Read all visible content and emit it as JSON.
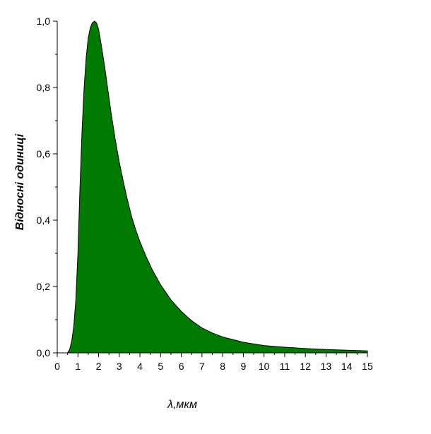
{
  "chart_data": {
    "type": "area",
    "title": "",
    "xlabel": "λ,мкм",
    "ylabel": "Відносні одиниці",
    "xlim": [
      0,
      15
    ],
    "ylim": [
      0,
      1.0
    ],
    "x_ticks": [
      "0",
      "1",
      "2",
      "3",
      "4",
      "5",
      "6",
      "7",
      "8",
      "9",
      "10",
      "11",
      "12",
      "13",
      "14",
      "15"
    ],
    "y_ticks": [
      "0,0",
      "0,2",
      "0,4",
      "0,6",
      "0,8",
      "1,0"
    ],
    "grid": false,
    "fill_color": "#007a00",
    "series": [
      {
        "x": [
          0.5,
          0.6,
          0.7,
          0.8,
          0.9,
          1.0,
          1.1,
          1.2,
          1.3,
          1.4,
          1.5,
          1.6,
          1.7,
          1.8,
          1.9,
          2.0,
          2.1,
          2.2,
          2.3,
          2.4,
          2.5,
          2.6,
          2.8,
          3.0,
          3.2,
          3.4,
          3.6,
          3.8,
          4.0,
          4.3,
          4.6,
          5.0,
          5.5,
          6.0,
          6.5,
          7.0,
          7.5,
          8.0,
          9.0,
          10.0,
          11.0,
          12.0,
          13.0,
          14.0,
          15.0
        ],
        "y": [
          0.0,
          0.01,
          0.035,
          0.08,
          0.16,
          0.3,
          0.5,
          0.67,
          0.8,
          0.89,
          0.95,
          0.98,
          0.995,
          1.0,
          0.995,
          0.975,
          0.94,
          0.9,
          0.86,
          0.815,
          0.77,
          0.725,
          0.645,
          0.575,
          0.515,
          0.46,
          0.41,
          0.37,
          0.335,
          0.29,
          0.25,
          0.205,
          0.16,
          0.125,
          0.097,
          0.075,
          0.06,
          0.048,
          0.032,
          0.022,
          0.017,
          0.013,
          0.01,
          0.008,
          0.006
        ]
      }
    ]
  }
}
